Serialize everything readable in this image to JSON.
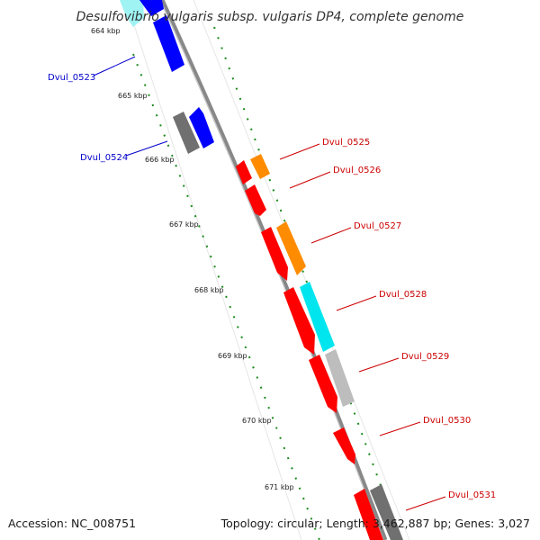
{
  "title": "Desulfovibrio vulgaris subsp. vulgaris DP4, complete genome",
  "footer": {
    "accession": "Accession: NC_008751",
    "summary": "Topology: circular; Length: 3,462,887 bp; Genes: 3,027"
  },
  "ticks": [
    "664 kbp",
    "665 kbp",
    "666 kbp",
    "667 kbp",
    "668 kbp",
    "669 kbp",
    "670 kbp",
    "671 kbp"
  ],
  "gene_labels": [
    {
      "text": "Dvul_0523",
      "color": "#0000cc"
    },
    {
      "text": "Dvul_0524",
      "color": "#0000cc"
    },
    {
      "text": "Dvul_0525",
      "color": "#cc0000"
    },
    {
      "text": "Dvul_0526",
      "color": "#cc0000"
    },
    {
      "text": "Dvul_0527",
      "color": "#cc0000"
    },
    {
      "text": "Dvul_0528",
      "color": "#cc0000"
    },
    {
      "text": "Dvul_0529",
      "color": "#cc0000"
    },
    {
      "text": "Dvul_0530",
      "color": "#cc0000"
    },
    {
      "text": "Dvul_0531",
      "color": "#cc0000"
    }
  ],
  "colors": {
    "backbone": "#888888",
    "tick_mark": "#1a8a1a",
    "red": "#ff0000",
    "blue": "#0000ff",
    "orange": "#ff8c00",
    "cyan": "#00e5ee",
    "gray": "#707070",
    "lightgray": "#bdbdbd",
    "pale_cyan": "#9ff3f3"
  }
}
